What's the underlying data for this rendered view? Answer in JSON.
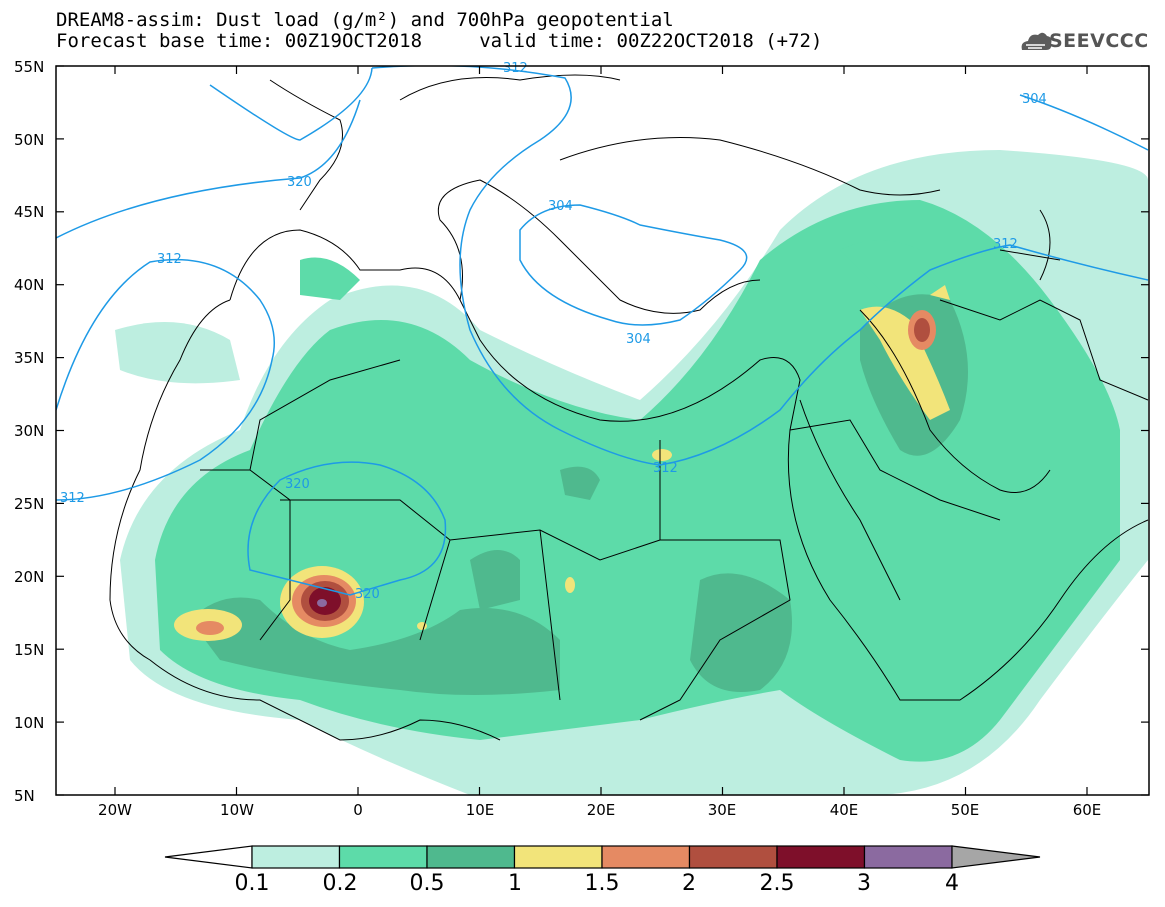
{
  "title": {
    "line1": "DREAM8-assim: Dust load (g/m²) and 700hPa geopotential",
    "line2": "Forecast base time: 00Z19OCT2018     valid time: 00Z22OCT2018 (+72)"
  },
  "logo": {
    "text": "SEEVCCC",
    "icon": "cloud-icon"
  },
  "map": {
    "lat_labels": [
      "55N",
      "50N",
      "45N",
      "40N",
      "35N",
      "30N",
      "25N",
      "20N",
      "15N",
      "10N",
      "5N"
    ],
    "lon_labels": [
      "20W",
      "10W",
      "0",
      "10E",
      "20E",
      "30E",
      "40E",
      "50E",
      "60E"
    ],
    "contour_labels": [
      "312",
      "320",
      "304",
      "304",
      "312",
      "312",
      "320",
      "320",
      "312",
      "304",
      "312"
    ]
  },
  "colorbar": {
    "ticks": [
      "0.1",
      "0.2",
      "0.5",
      "1",
      "1.5",
      "2",
      "2.5",
      "3",
      "4"
    ],
    "colors": [
      "#bdeee0",
      "#5ddba9",
      "#4fb98e",
      "#f2e47a",
      "#e58a63",
      "#b04f3f",
      "#7e0f2a",
      "#8b6aa0",
      "#a6a6a6"
    ]
  }
}
